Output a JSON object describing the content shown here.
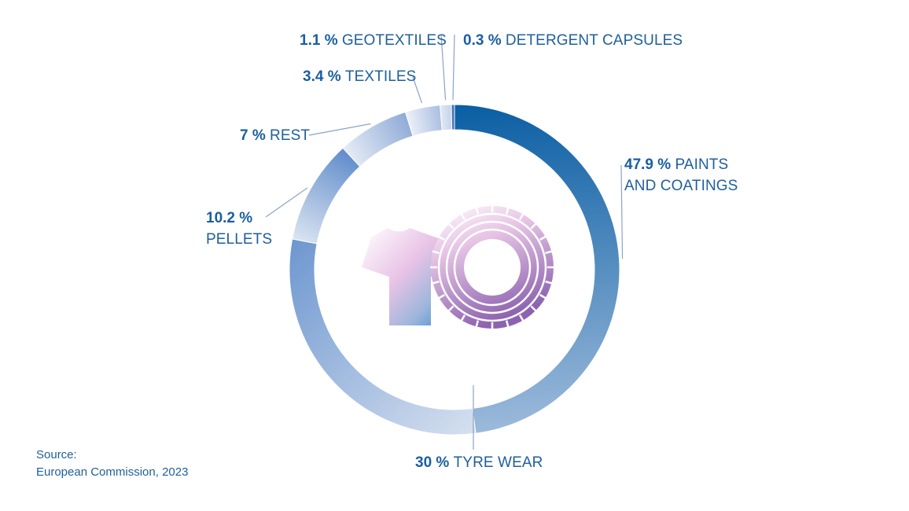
{
  "chart_data": {
    "type": "pie",
    "variant": "donut",
    "categories": [
      "PAINTS AND COATINGS",
      "TYRE WEAR",
      "PELLETS",
      "REST",
      "TEXTILES",
      "GEOTEXTILES",
      "DETERGENT CAPSULES"
    ],
    "values": [
      47.9,
      30,
      10.2,
      7,
      3.4,
      1.1,
      0.3
    ],
    "slices": [
      {
        "value": 47.9,
        "pct_label": "47.9 %",
        "name": "PAINTS AND COATINGS",
        "name_lines": [
          "PAINTS",
          "AND COATINGS"
        ],
        "color_start": "#0a5ea3",
        "color_end": "#9cbadb"
      },
      {
        "value": 30,
        "pct_label": "30 %",
        "name": "TYRE WEAR",
        "name_lines": [
          "TYRE WEAR"
        ],
        "color_start": "#d6e0f0",
        "color_end": "#6e97cf"
      },
      {
        "value": 10.2,
        "pct_label": "10.2 %",
        "name": "PELLETS",
        "name_lines": [
          "PELLETS"
        ],
        "color_start": "#dce5f2",
        "color_end": "#5f8ccb"
      },
      {
        "value": 7,
        "pct_label": "7 %",
        "name": "REST",
        "name_lines": [
          "REST"
        ],
        "color_start": "#e6ecf6",
        "color_end": "#8eaad6"
      },
      {
        "value": 3.4,
        "pct_label": "3.4 %",
        "name": "TEXTILES",
        "name_lines": [
          "TEXTILES"
        ],
        "color_start": "#eef2f9",
        "color_end": "#a9bde0"
      },
      {
        "value": 1.1,
        "pct_label": "1.1 %",
        "name": "GEOTEXTILES",
        "name_lines": [
          "GEOTEXTILES"
        ],
        "color_start": "#e2e9f4",
        "color_end": "#c3d2ea"
      },
      {
        "value": 0.3,
        "pct_label": "0.3 %",
        "name": "DETERGENT CAPSULES",
        "name_lines": [
          "DETERGENT CAPSULES"
        ],
        "color_start": "#3f74b4",
        "color_end": "#3f74b4"
      }
    ],
    "source": {
      "line1": "Source:",
      "line2": "European Commission, 2023"
    },
    "center_icons": [
      "t-shirt-icon",
      "tyre-icon"
    ],
    "colors": {
      "label_text": "#1f5f9a",
      "leader_line": "#8aa3c7",
      "icon_pink": "#d9a6d8",
      "icon_purple": "#8d63b0",
      "icon_blue": "#3f8fcf"
    }
  }
}
